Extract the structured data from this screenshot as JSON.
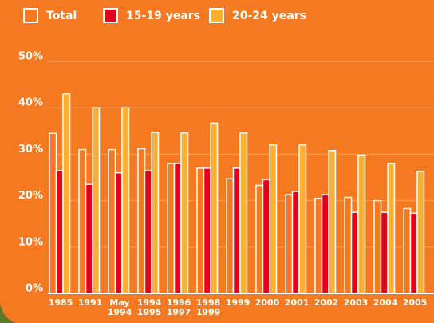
{
  "chart_data": {
    "type": "bar",
    "categories": [
      "1985",
      "1991",
      "May 1994",
      "1994 1995",
      "1996 1997",
      "1998 1999",
      "1999",
      "2000",
      "2001",
      "2002",
      "2003",
      "2004",
      "2005"
    ],
    "series": [
      {
        "name": "Total",
        "color": "#f47920",
        "values": [
          34.5,
          31,
          31,
          31.2,
          28,
          27,
          24.7,
          23.3,
          21.3,
          20.5,
          20.7,
          20,
          18.3
        ]
      },
      {
        "name": "15-19 years",
        "color": "#e3001b",
        "values": [
          26.5,
          23.5,
          26,
          26.5,
          28,
          27,
          27,
          24.5,
          22,
          21.3,
          17.5,
          17.5,
          17.3
        ]
      },
      {
        "name": "20-24 years",
        "color": "#fbb034",
        "values": [
          43,
          40,
          40,
          34.7,
          34.6,
          36.7,
          34.6,
          32,
          32,
          30.8,
          29.8,
          28,
          26.3
        ]
      }
    ],
    "ylim": [
      0,
      50
    ],
    "yticks": [
      {
        "value": 0,
        "label": "0%"
      },
      {
        "value": 10,
        "label": "10%"
      },
      {
        "value": 20,
        "label": "20%"
      },
      {
        "value": 30,
        "label": "30%"
      },
      {
        "value": 40,
        "label": "40%"
      },
      {
        "value": 50,
        "label": "50%"
      }
    ],
    "grid": true
  }
}
